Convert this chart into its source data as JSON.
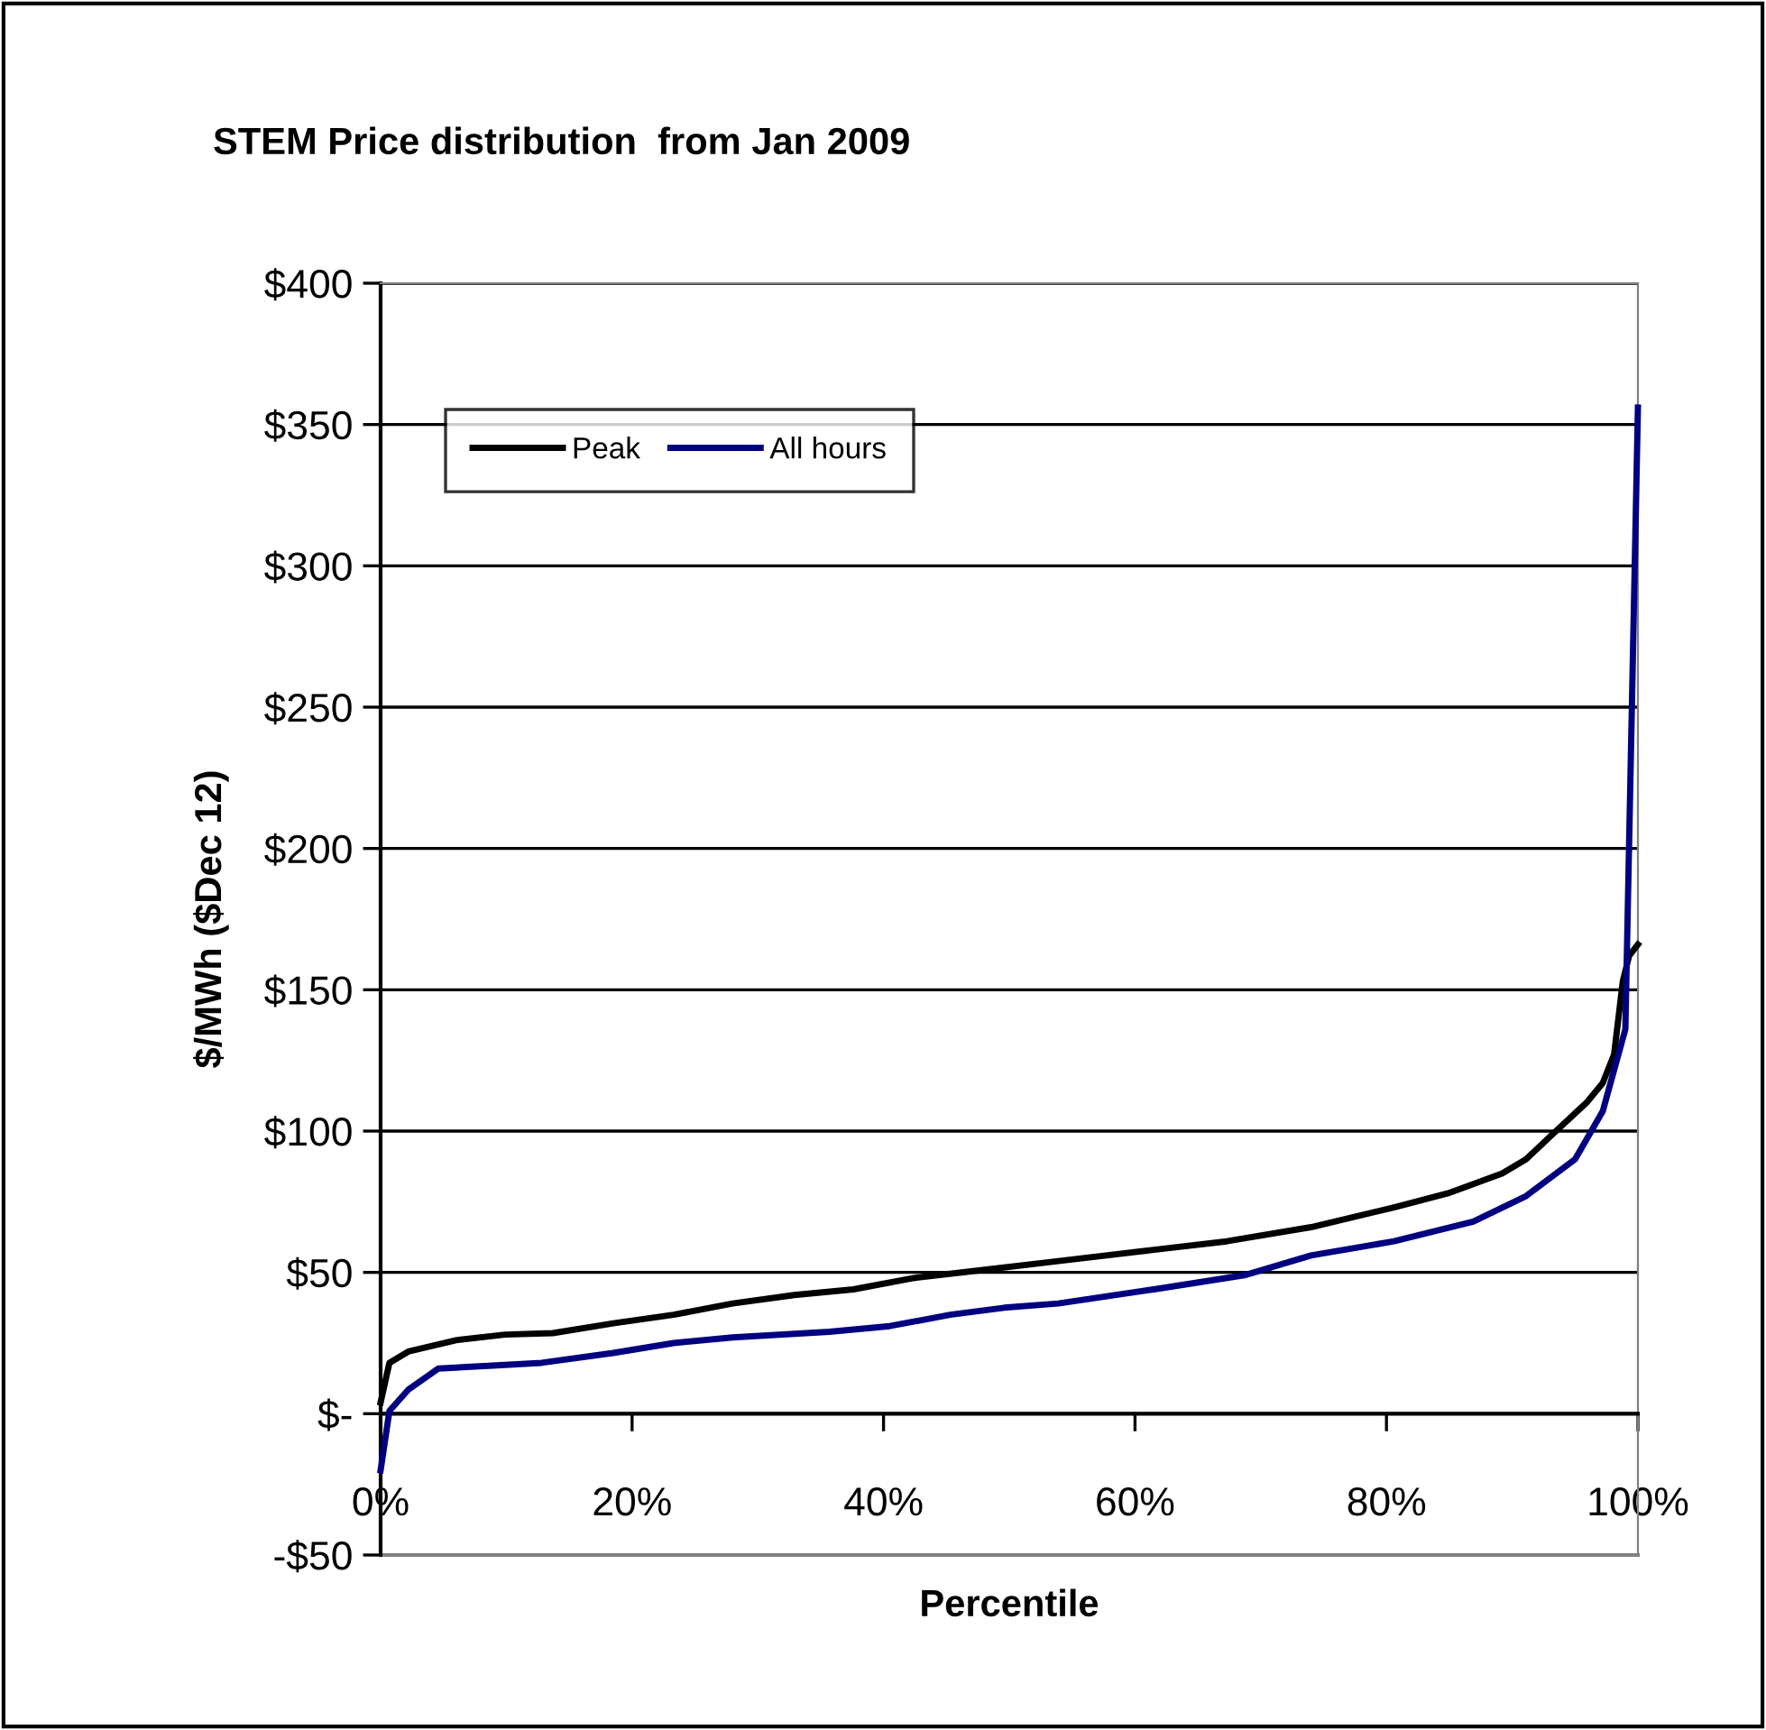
{
  "chart_data": {
    "type": "line",
    "title": "STEM Price distribution  from Jan 2009",
    "xlabel": "Percentile",
    "ylabel": "$/MWh ($Dec 12)",
    "xlim": [
      0,
      100
    ],
    "ylim": [
      -50,
      400
    ],
    "xticks": [
      {
        "value": 0,
        "label": "0%"
      },
      {
        "value": 20,
        "label": "20%"
      },
      {
        "value": 40,
        "label": "40%"
      },
      {
        "value": 60,
        "label": "60%"
      },
      {
        "value": 80,
        "label": "80%"
      },
      {
        "value": 100,
        "label": "100%"
      }
    ],
    "yticks": [
      {
        "value": -50,
        "label": "-$50"
      },
      {
        "value": 0,
        "label": "$-"
      },
      {
        "value": 50,
        "label": "$50"
      },
      {
        "value": 100,
        "label": "$100"
      },
      {
        "value": 150,
        "label": "$150"
      },
      {
        "value": 200,
        "label": "$200"
      },
      {
        "value": 250,
        "label": "$250"
      },
      {
        "value": 300,
        "label": "$300"
      },
      {
        "value": 350,
        "label": "$350"
      },
      {
        "value": 400,
        "label": "$400"
      }
    ],
    "grid": "y",
    "legend": "top left",
    "marker": "none",
    "line_style": "solid",
    "series": [
      {
        "name": "Peak",
        "color": "#000000",
        "x": [
          0,
          0.7,
          2.2,
          6,
          9.9,
          13.7,
          18.5,
          23.3,
          28,
          32.9,
          37.6,
          42.4,
          48.2,
          53.9,
          61.5,
          67.3,
          74,
          80.6,
          84.9,
          89.2,
          91.1,
          93,
          95.9,
          97.2,
          98.1,
          98.8,
          99.3,
          100
        ],
        "values": [
          4,
          18,
          22,
          26,
          28,
          28.5,
          32,
          35,
          39,
          42,
          44,
          48,
          51,
          54,
          58,
          61,
          66,
          73,
          78,
          85,
          90,
          98,
          110,
          117,
          127,
          153,
          162,
          166
        ]
      },
      {
        "name": "All hours",
        "color": "#000080",
        "x": [
          0,
          0.7,
          2.2,
          4.6,
          8.9,
          12.8,
          18.5,
          23.3,
          28,
          35.7,
          40.5,
          45.3,
          49.6,
          53.9,
          61.5,
          68.7,
          74,
          80.6,
          86.9,
          91.1,
          95,
          97.2,
          99,
          100
        ],
        "values": [
          -20,
          1,
          8.5,
          16,
          17,
          18,
          21.5,
          25,
          27,
          29,
          31,
          35,
          37.5,
          39,
          44,
          49,
          56,
          61,
          68,
          77,
          90,
          107,
          136,
          356
        ]
      }
    ]
  }
}
